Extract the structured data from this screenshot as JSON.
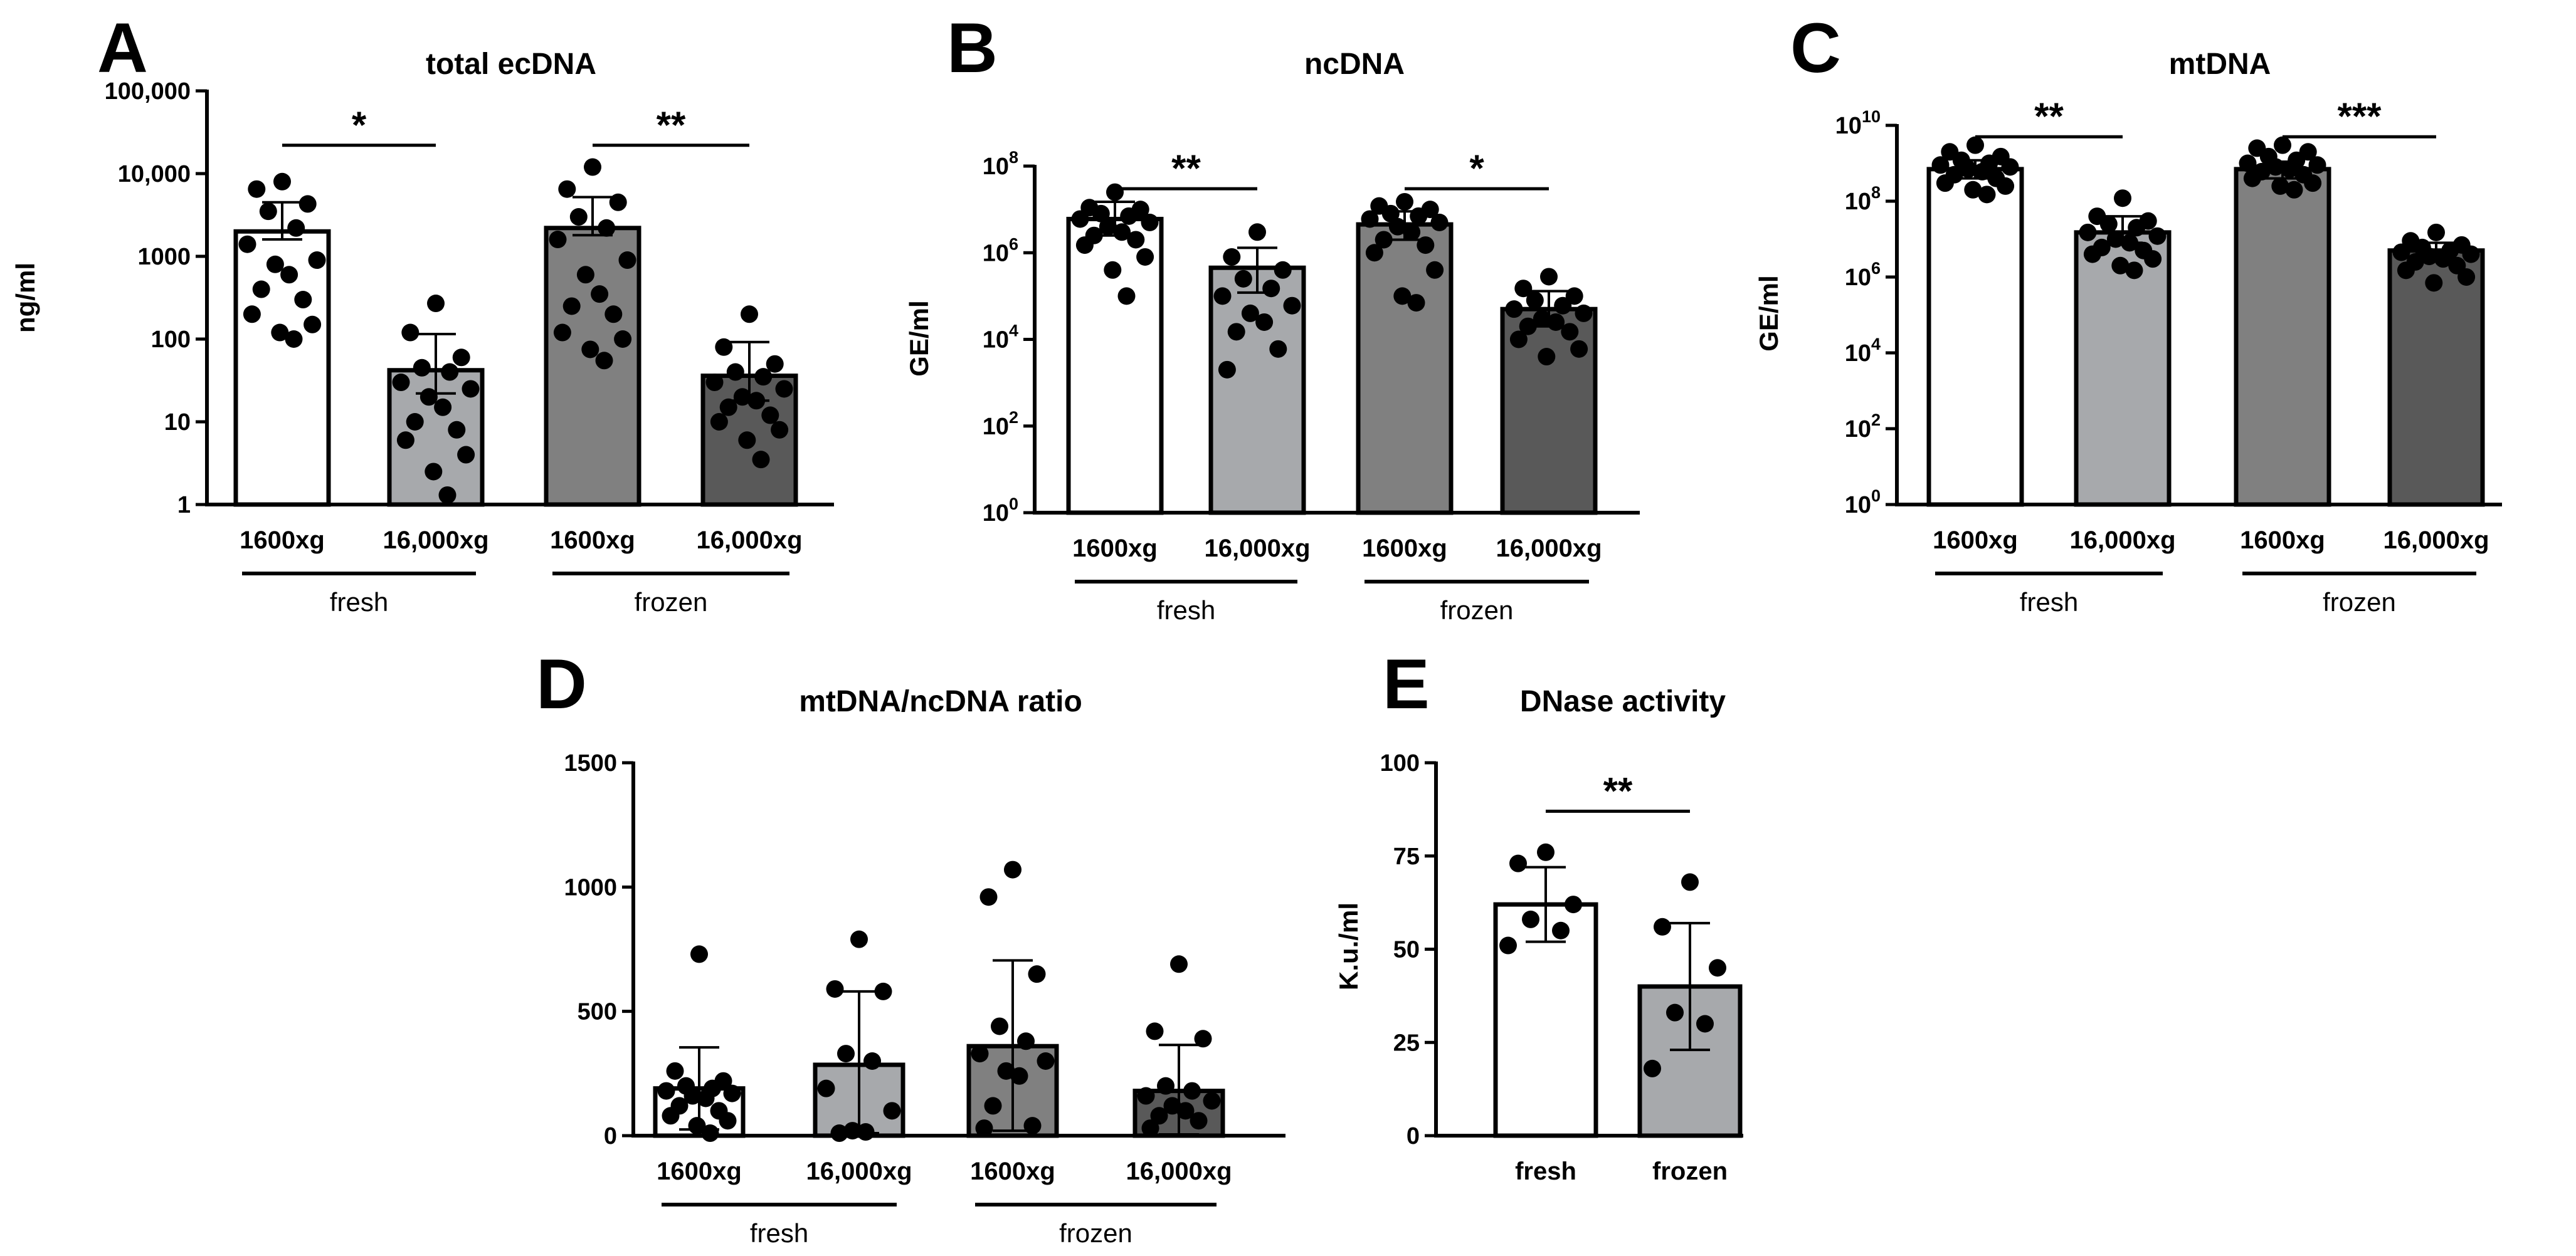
{
  "chart_data": [
    {
      "id": "A",
      "type": "bar",
      "scale": "log",
      "title": "total ecDNA",
      "ylabel": "ng/ml",
      "ylim": [
        1,
        100000
      ],
      "yticks": [
        1,
        10,
        100,
        1000,
        10000,
        100000
      ],
      "ytick_labels": [
        "1",
        "10",
        "100",
        "1000",
        "10,000",
        "100,000"
      ],
      "categories": [
        "1600xg",
        "16,000xg",
        "1600xg",
        "16,000xg"
      ],
      "groups": [
        {
          "label": "fresh",
          "span": [
            0,
            1
          ]
        },
        {
          "label": "frozen",
          "span": [
            2,
            3
          ]
        }
      ],
      "values": [
        2000,
        42,
        2200,
        36
      ],
      "error_upper": [
        4500,
        115,
        5200,
        92
      ],
      "error_lower": [
        1600,
        22,
        1800,
        18
      ],
      "points": [
        [
          8000,
          6500,
          4300,
          3500,
          2200,
          1400,
          900,
          800,
          600,
          400,
          300,
          200,
          150,
          120,
          100
        ],
        [
          270,
          120,
          60,
          45,
          40,
          30,
          25,
          20,
          15,
          10,
          8,
          6,
          4,
          2.5,
          1.3
        ],
        [
          12000,
          6500,
          4500,
          3000,
          2200,
          1600,
          900,
          600,
          350,
          250,
          200,
          120,
          100,
          75,
          55
        ],
        [
          200,
          80,
          50,
          40,
          35,
          30,
          25,
          20,
          18,
          15,
          12,
          10,
          8,
          6,
          3.5
        ]
      ],
      "bar_colors": [
        "#ffffff",
        "#a7a9ac",
        "#808080",
        "#595959"
      ],
      "significance": [
        {
          "from": 0,
          "to": 1,
          "label": "*",
          "y": 22000
        },
        {
          "from": 2,
          "to": 3,
          "label": "**",
          "y": 22000
        }
      ]
    },
    {
      "id": "B",
      "type": "bar",
      "scale": "log",
      "title": "ncDNA",
      "ylabel": "GE/ml",
      "ylim": [
        1,
        100000000
      ],
      "yticks": [
        1,
        100,
        10000,
        1000000,
        100000000
      ],
      "ytick_bases": [
        "10",
        "10",
        "10",
        "10",
        "10"
      ],
      "ytick_exps": [
        "0",
        "2",
        "4",
        "6",
        "8"
      ],
      "categories": [
        "1600xg",
        "16,000xg",
        "1600xg",
        "16,000xg"
      ],
      "groups": [
        {
          "label": "fresh",
          "span": [
            0,
            1
          ]
        },
        {
          "label": "frozen",
          "span": [
            2,
            3
          ]
        }
      ],
      "values": [
        6000000,
        450000,
        4500000,
        50000
      ],
      "error_upper": [
        15000000,
        1300000,
        9000000,
        130000
      ],
      "error_lower": [
        2500000,
        120000,
        2000000,
        20000
      ],
      "points": [
        [
          25000000,
          11000000,
          10000000,
          8000000,
          7000000,
          6000000,
          5000000,
          4000000,
          3000000,
          2500000,
          2000000,
          1500000,
          800000,
          400000,
          100000
        ],
        [
          3000000,
          800000,
          400000,
          250000,
          150000,
          100000,
          60000,
          40000,
          25000,
          15000,
          6000,
          2000
        ],
        [
          15000000,
          12000000,
          10000000,
          8000000,
          7000000,
          6000000,
          5000000,
          4000000,
          3000000,
          2000000,
          1500000,
          1000000,
          400000,
          100000,
          70000
        ],
        [
          280000,
          150000,
          100000,
          80000,
          60000,
          50000,
          40000,
          30000,
          25000,
          20000,
          15000,
          10000,
          6000,
          4000
        ]
      ],
      "bar_colors": [
        "#ffffff",
        "#a7a9ac",
        "#808080",
        "#595959"
      ],
      "significance": [
        {
          "from": 0,
          "to": 1,
          "label": "**",
          "y": 30000000
        },
        {
          "from": 2,
          "to": 3,
          "label": "*",
          "y": 30000000
        }
      ]
    },
    {
      "id": "C",
      "type": "bar",
      "scale": "log",
      "title": "mtDNA",
      "ylabel": "GE/ml",
      "ylim": [
        1,
        10000000000
      ],
      "yticks": [
        1,
        100,
        10000,
        1000000,
        100000000,
        10000000000
      ],
      "ytick_bases": [
        "10",
        "10",
        "10",
        "10",
        "10",
        "10"
      ],
      "ytick_exps": [
        "0",
        "2",
        "4",
        "6",
        "8",
        "10"
      ],
      "categories": [
        "1600xg",
        "16,000xg",
        "1600xg",
        "16,000xg"
      ],
      "groups": [
        {
          "label": "fresh",
          "span": [
            0,
            1
          ]
        },
        {
          "label": "frozen",
          "span": [
            2,
            3
          ]
        }
      ],
      "values": [
        700000000,
        15000000,
        700000000,
        5000000
      ],
      "error_upper": [
        1200000000,
        40000000,
        1100000000,
        8000000
      ],
      "error_lower": [
        400000000,
        8000000,
        400000000,
        3000000
      ],
      "points": [
        [
          3000000000,
          2000000000,
          1500000000,
          1200000000,
          1000000000,
          900000000,
          800000000,
          700000000,
          600000000,
          500000000,
          400000000,
          300000000,
          250000000,
          200000000,
          150000000
        ],
        [
          120000000,
          40000000,
          30000000,
          25000000,
          20000000,
          15000000,
          12000000,
          10000000,
          8000000,
          6000000,
          5000000,
          4000000,
          3000000,
          2000000,
          1500000
        ],
        [
          3000000000,
          2500000000,
          2000000000,
          1500000000,
          1200000000,
          1000000000,
          900000000,
          800000000,
          700000000,
          600000000,
          500000000,
          400000000,
          300000000,
          250000000,
          200000000
        ],
        [
          15000000,
          9000000,
          7000000,
          6000000,
          5000000,
          4500000,
          4000000,
          3500000,
          3000000,
          2500000,
          2000000,
          1500000,
          1000000,
          700000
        ]
      ],
      "bar_colors": [
        "#ffffff",
        "#a7a9ac",
        "#808080",
        "#595959"
      ],
      "significance": [
        {
          "from": 0,
          "to": 1,
          "label": "**",
          "y": 5000000000
        },
        {
          "from": 2,
          "to": 3,
          "label": "***",
          "y": 5000000000
        }
      ]
    },
    {
      "id": "D",
      "type": "bar",
      "scale": "linear",
      "title": "mtDNA/ncDNA ratio",
      "ylabel": "",
      "ylim": [
        0,
        1500
      ],
      "yticks": [
        0,
        500,
        1000,
        1500
      ],
      "ytick_labels": [
        "0",
        "500",
        "1000",
        "1500"
      ],
      "categories": [
        "1600xg",
        "16,000xg",
        "1600xg",
        "16,000xg"
      ],
      "groups": [
        {
          "label": "fresh",
          "span": [
            0,
            1
          ]
        },
        {
          "label": "frozen",
          "span": [
            2,
            3
          ]
        }
      ],
      "values": [
        190,
        285,
        360,
        180
      ],
      "error_upper": [
        355,
        580,
        705,
        365
      ],
      "error_lower": [
        25,
        10,
        20,
        5
      ],
      "points": [
        [
          730,
          260,
          220,
          200,
          190,
          180,
          170,
          160,
          150,
          120,
          100,
          80,
          60,
          40,
          10
        ],
        [
          790,
          590,
          580,
          330,
          300,
          190,
          100,
          20,
          15,
          10
        ],
        [
          1070,
          960,
          650,
          440,
          380,
          330,
          300,
          260,
          240,
          120,
          40,
          30
        ],
        [
          690,
          420,
          390,
          200,
          180,
          160,
          140,
          120,
          100,
          80,
          60,
          30
        ]
      ],
      "bar_colors": [
        "#ffffff",
        "#a7a9ac",
        "#808080",
        "#595959"
      ],
      "significance": []
    },
    {
      "id": "E",
      "type": "bar",
      "scale": "linear",
      "title": "DNase activity",
      "ylabel": "K.u./ml",
      "ylim": [
        0,
        100
      ],
      "yticks": [
        0,
        25,
        50,
        75,
        100
      ],
      "ytick_labels": [
        "0",
        "25",
        "50",
        "75",
        "100"
      ],
      "categories": [
        "fresh",
        "frozen"
      ],
      "groups": [],
      "values": [
        62,
        40
      ],
      "error_upper": [
        72,
        57
      ],
      "error_lower": [
        52,
        23
      ],
      "points": [
        [
          76,
          73,
          62,
          58,
          55,
          51
        ],
        [
          68,
          56,
          45,
          33,
          30,
          18
        ]
      ],
      "bar_colors": [
        "#ffffff",
        "#a7a9ac"
      ],
      "significance": [
        {
          "from": 0,
          "to": 1,
          "label": "**",
          "y": 87
        }
      ]
    }
  ]
}
